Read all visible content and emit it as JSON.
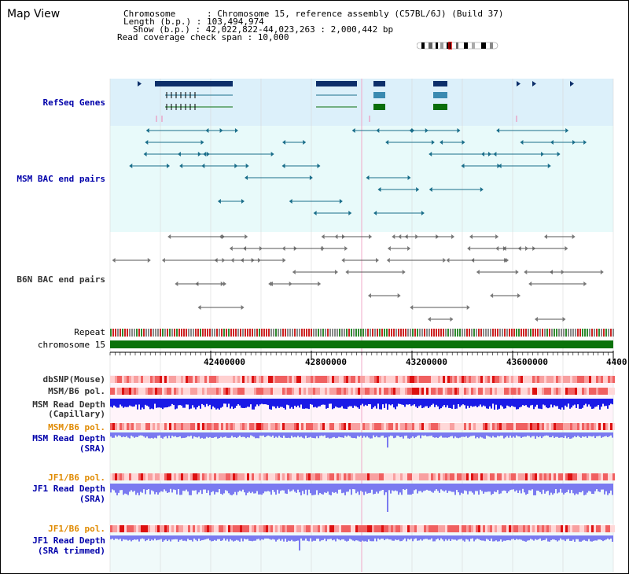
{
  "view": {
    "title": "Map View",
    "info_lines": [
      "Chromosome      : Chromosome 15, reference assembly (C57BL/6J) (Build 37)",
      "Length (b.p.) : 103,494,974",
      "Show (b.p.) : 42,022,822-44,023,263 : 2,000,442 bp",
      "Read coverage check span : 10,000"
    ]
  },
  "tracks": {
    "refseq_label": "RefSeq Genes",
    "msm_bac_label": "MSM BAC end pairs",
    "b6n_bac_label": "B6N BAC end pairs",
    "repeat_label": "Repeat",
    "chromosome_label": "chromosome 15",
    "dbsnp_label": "dbSNP(Mouse)",
    "msm_pol_label": "MSM/B6 pol.",
    "msm_depth_cap_label_1": "MSM Read Depth",
    "msm_depth_cap_label_2": "(Capillary)",
    "msm_pol_sra_label": "MSM/B6 pol.",
    "msm_depth_sra_label_1": "MSM Read Depth",
    "msm_depth_sra_label_2": "(SRA)",
    "jf1_pol_label": "JF1/B6 pol.",
    "jf1_depth_sra_label_1": "JF1 Read Depth",
    "jf1_depth_sra_label_2": "(SRA)",
    "jf1_pol_trim_label": "JF1/B6 pol.",
    "jf1_depth_trim_label_1": "JF1 Read Depth",
    "jf1_depth_trim_label_2": "(SRA trimmed)"
  },
  "ruler": {
    "ticks": [
      "42400000",
      "42800000",
      "43200000",
      "43600000",
      "4400"
    ]
  },
  "colors": {
    "refseq_bg": "#dcf0fa",
    "bac_bg": "#e8fafa",
    "navy": "#0d2f6a",
    "teal": "#1a6e8a",
    "green": "#0a6e0a",
    "gray_glyph": "#777777",
    "depth_blue": "#1a1ae6",
    "depth_light": "#7a7af0"
  }
}
